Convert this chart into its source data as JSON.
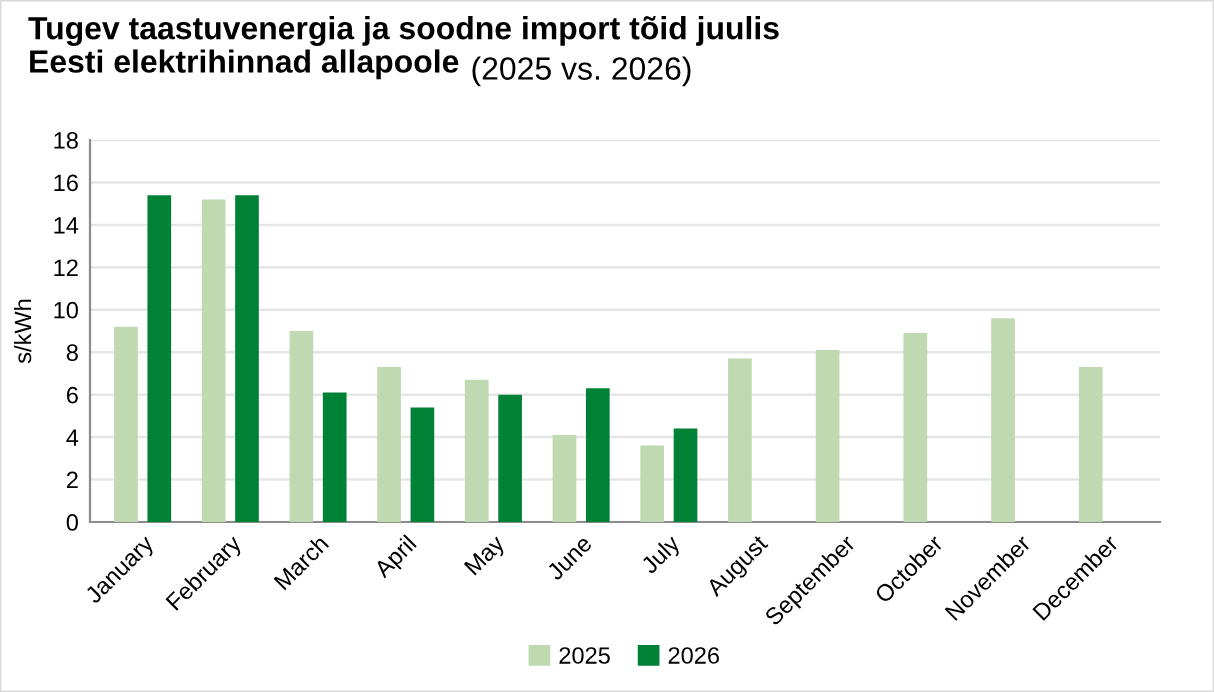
{
  "chart_data": {
    "type": "bar",
    "title": "Tugev taastuvenergia ja soodne import tõid juulis Eesti elektrihinnad allapoole",
    "subtitle": "(2025 vs. 2026)",
    "ylabel": "s/kWh",
    "categories": [
      "January",
      "February",
      "March",
      "April",
      "May",
      "June",
      "July",
      "August",
      "September",
      "October",
      "November",
      "December"
    ],
    "series": [
      {
        "name": "2025",
        "color": "#bfd9b1",
        "values": [
          9.2,
          15.2,
          9.0,
          7.3,
          6.7,
          4.1,
          3.6,
          7.7,
          8.1,
          8.9,
          9.6,
          7.3
        ]
      },
      {
        "name": "2026",
        "color": "#008236",
        "values": [
          15.4,
          15.4,
          6.1,
          5.4,
          6.0,
          6.3,
          4.4,
          null,
          null,
          null,
          null,
          null
        ]
      }
    ],
    "ylim": [
      0,
      18
    ],
    "yticks": [
      0,
      2,
      4,
      6,
      8,
      10,
      12,
      14,
      16,
      18
    ],
    "grid": "y",
    "legend": "bottom"
  }
}
